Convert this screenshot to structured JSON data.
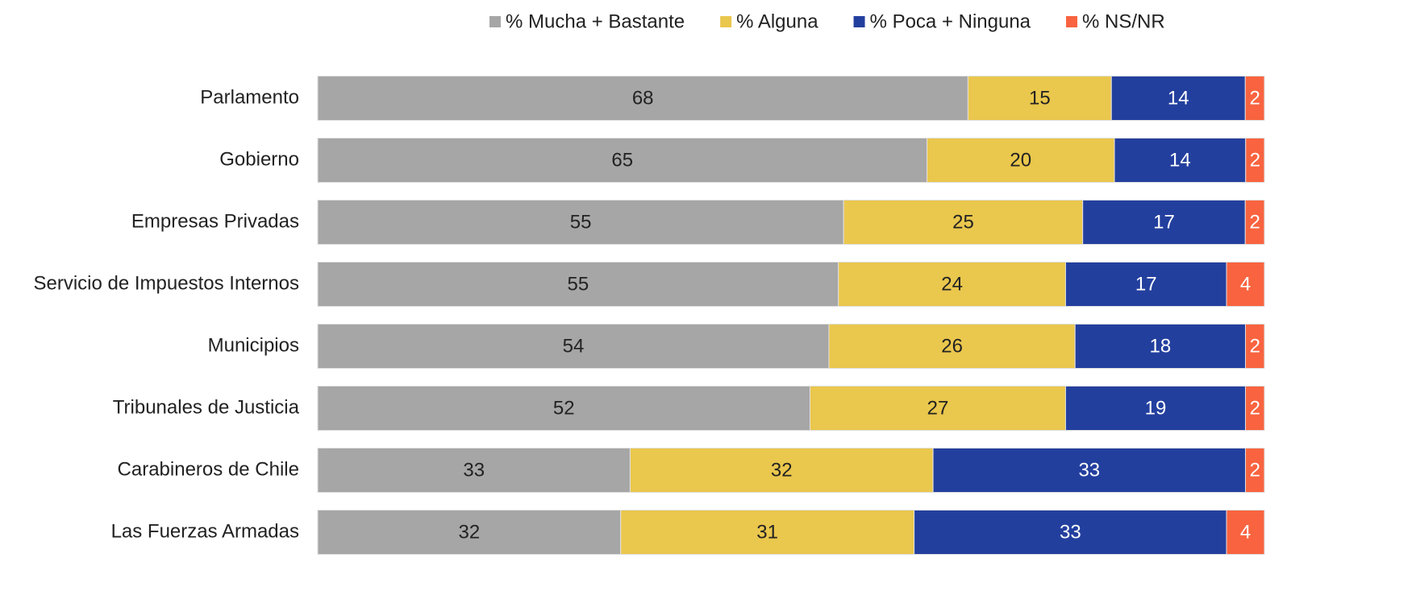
{
  "chart_data": {
    "type": "bar",
    "orientation": "horizontal",
    "stacked": "percent",
    "categories": [
      "Parlamento",
      "Gobierno",
      "Empresas Privadas",
      "Servicio de Impuestos Internos",
      "Municipios",
      "Tribunales de Justicia",
      "Carabineros de Chile",
      "Las Fuerzas Armadas"
    ],
    "series": [
      {
        "name": "% Mucha + Bastante",
        "color": "#a6a6a6",
        "label_color": "#222222",
        "values": [
          68,
          65,
          55,
          55,
          54,
          52,
          33,
          32
        ]
      },
      {
        "name": "% Alguna",
        "color": "#eac74d",
        "label_color": "#222222",
        "values": [
          15,
          20,
          25,
          24,
          26,
          27,
          32,
          31
        ]
      },
      {
        "name": "% Poca + Ninguna",
        "color": "#233f9e",
        "label_color": "#ffffff",
        "values": [
          14,
          14,
          17,
          17,
          18,
          19,
          33,
          33
        ]
      },
      {
        "name": "% NS/NR",
        "color": "#f9633f",
        "label_color": "#ffffff",
        "values": [
          2,
          2,
          2,
          4,
          2,
          2,
          2,
          4
        ]
      }
    ],
    "legend": "top-right"
  }
}
